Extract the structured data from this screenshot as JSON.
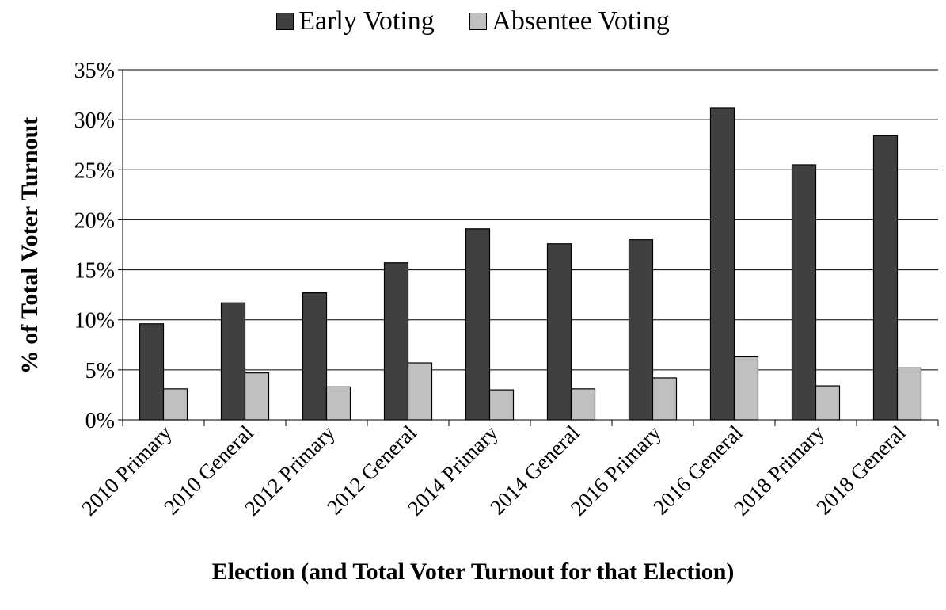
{
  "chart_data": {
    "type": "bar",
    "title": "",
    "xlabel": "Election (and Total Voter Turnout for that Election)",
    "ylabel": "% of Total Voter Turnout",
    "ylim": [
      0,
      35
    ],
    "yticks": [
      "0%",
      "5%",
      "10%",
      "15%",
      "20%",
      "25%",
      "30%",
      "35%"
    ],
    "grid": "horizontal",
    "legend_position": "top-center",
    "categories": [
      "2010 Primary",
      "2010 General",
      "2012 Primary",
      "2012 General",
      "2014 Primary",
      "2014 General",
      "2016 Primary",
      "2016 General",
      "2018 Primary",
      "2018 General"
    ],
    "series": [
      {
        "name": "Early Voting",
        "color": "#404040",
        "values": [
          9.6,
          11.7,
          12.7,
          15.7,
          19.1,
          17.6,
          18.0,
          31.2,
          25.5,
          28.4
        ]
      },
      {
        "name": "Absentee Voting",
        "color": "#c0c0c0",
        "values": [
          3.1,
          4.7,
          3.3,
          5.7,
          3.0,
          3.1,
          4.2,
          6.3,
          3.4,
          5.2
        ]
      }
    ]
  }
}
